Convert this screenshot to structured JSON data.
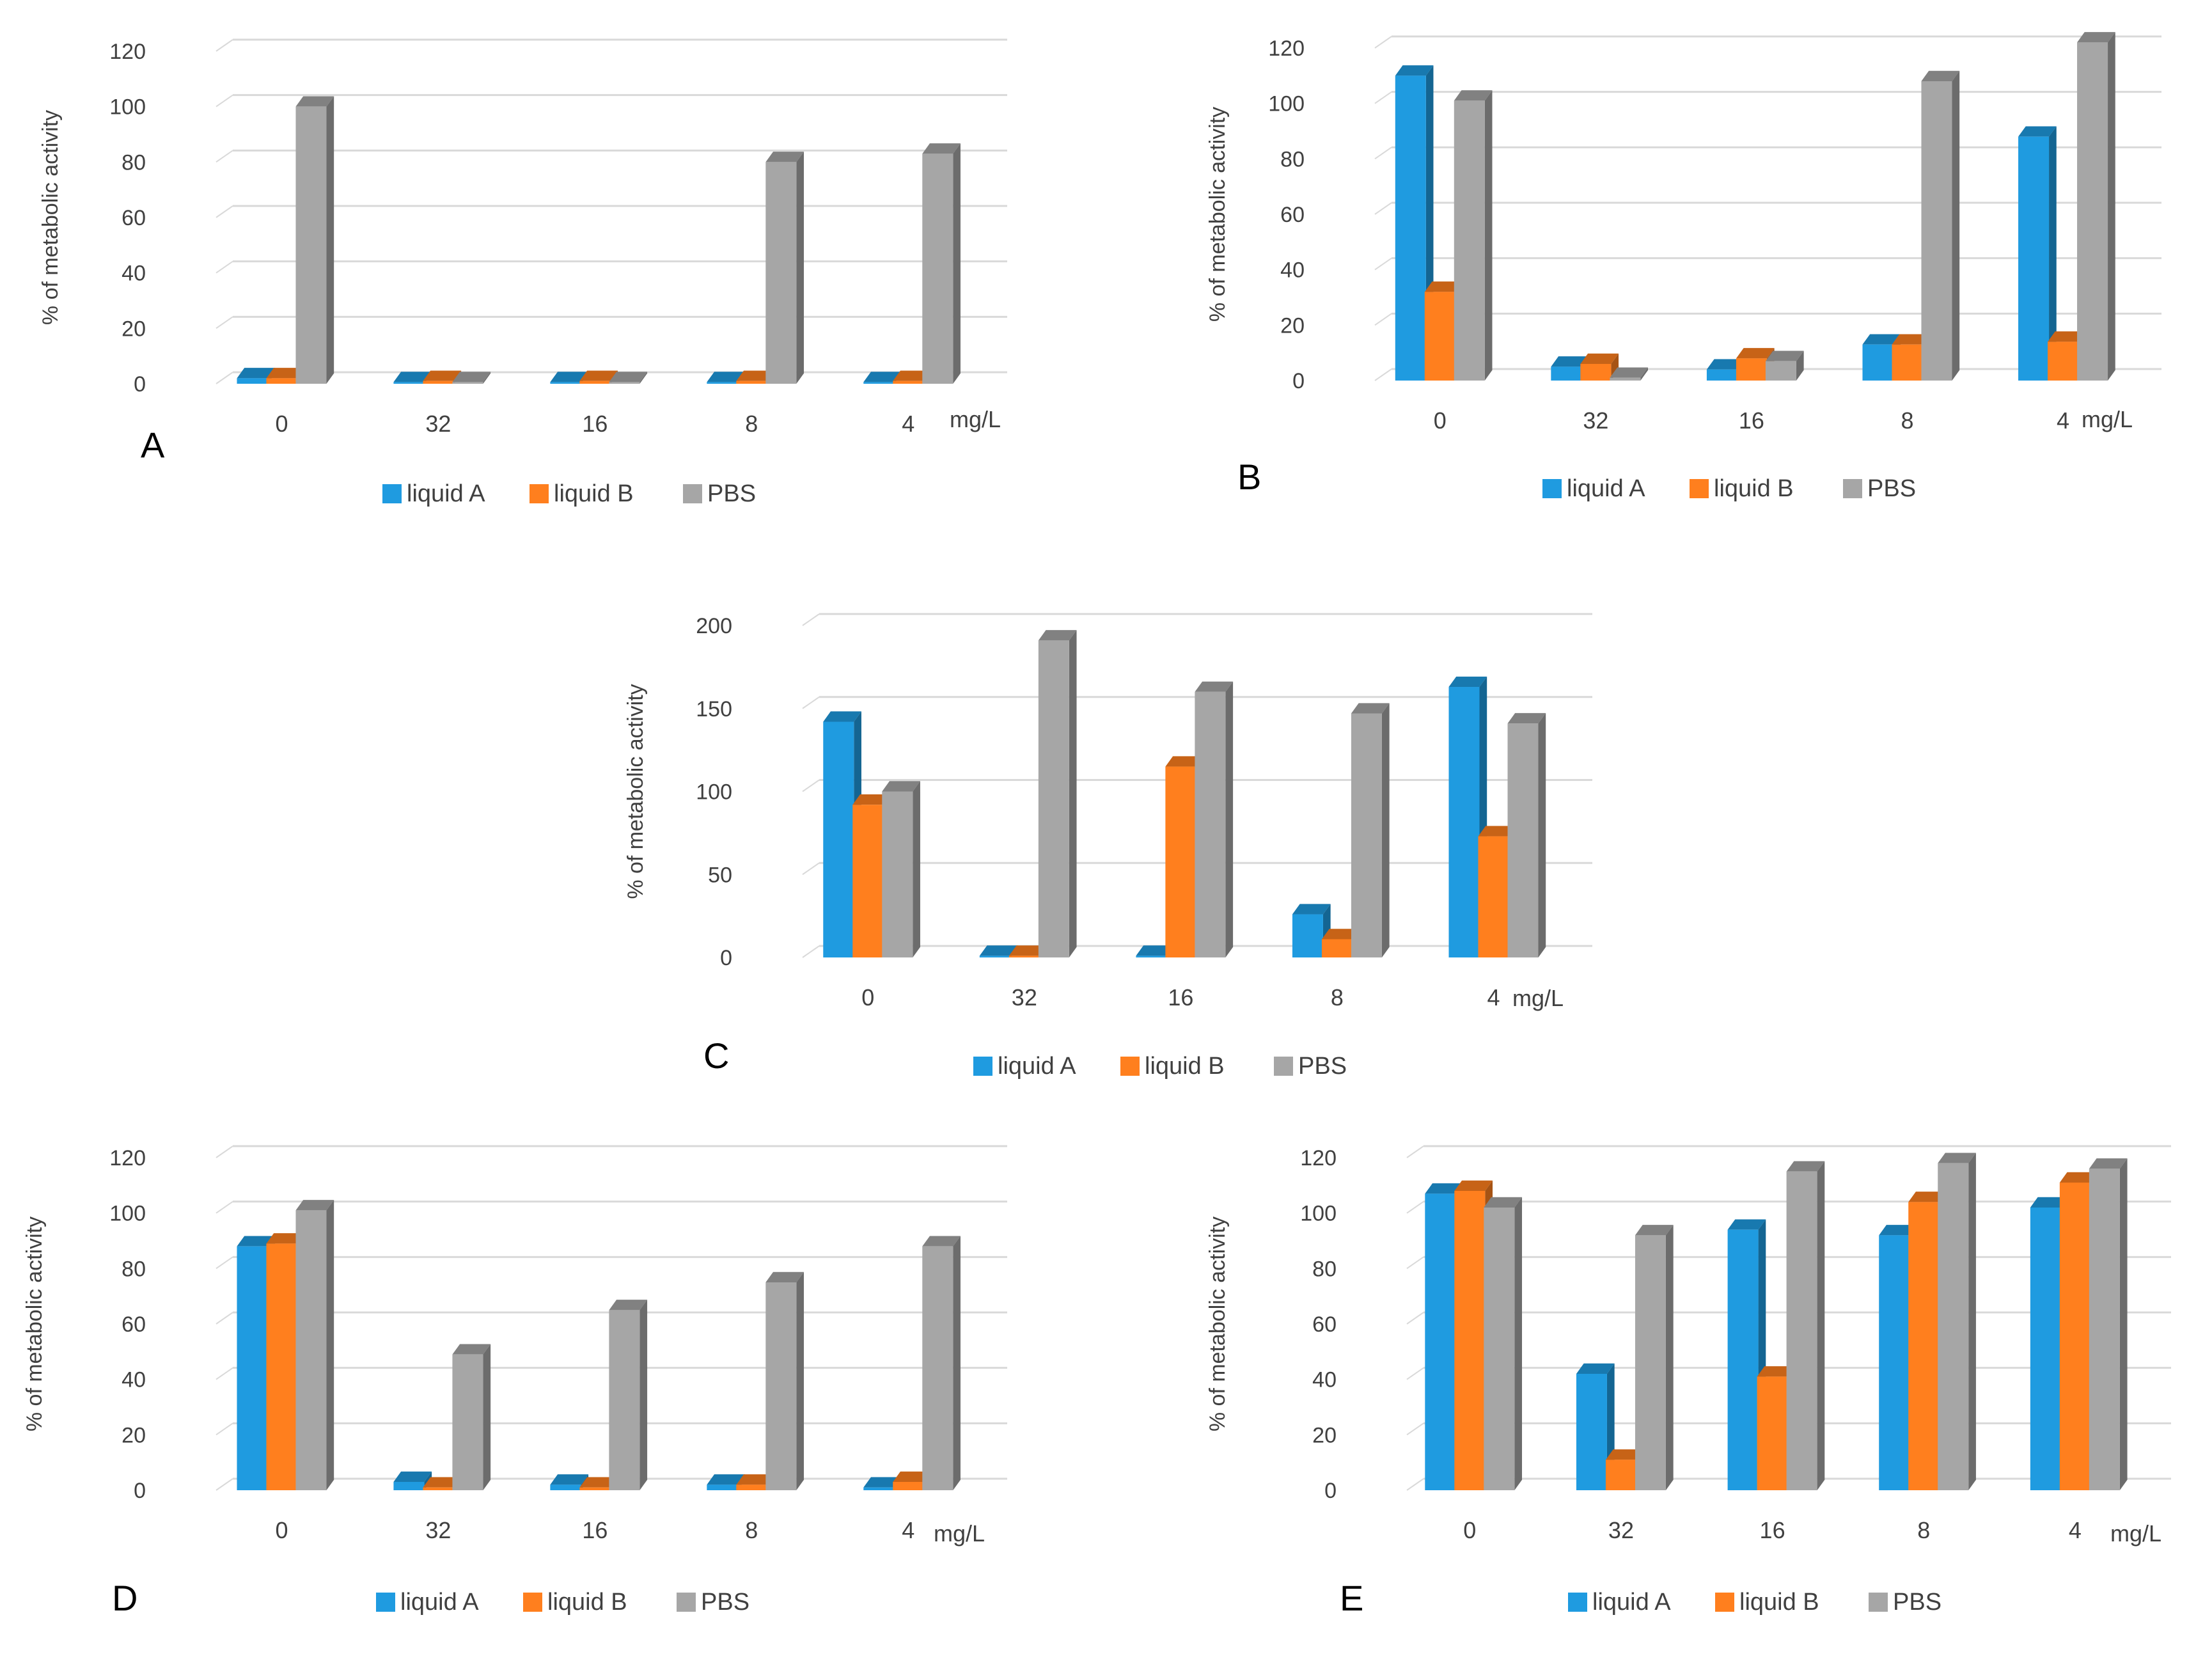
{
  "figure": {
    "legend": [
      "liquid A",
      "liquid B",
      "PBS"
    ],
    "colors": {
      "liquid A": "#1F9BE0",
      "liquid B": "#FF7F1E",
      "PBS": "#A6A6A6"
    }
  },
  "chart_data": [
    {
      "panel": "A",
      "type": "bar",
      "ylabel": "% of metabolic activity",
      "xunit": "mg/L",
      "categories": [
        "0",
        "32",
        "16",
        "8",
        "4"
      ],
      "yticks": [
        "0",
        "20",
        "40",
        "60",
        "80",
        "100",
        "120"
      ],
      "ylim": [
        0,
        120
      ],
      "series": [
        {
          "name": "liquid A",
          "values": [
            2,
            0,
            0,
            0,
            0
          ]
        },
        {
          "name": "liquid B",
          "values": [
            2,
            1,
            1,
            1,
            1
          ]
        },
        {
          "name": "PBS",
          "values": [
            100,
            0,
            0,
            80,
            83
          ]
        }
      ]
    },
    {
      "panel": "B",
      "type": "bar",
      "ylabel": "% of metabolic activity",
      "xunit": "mg/L",
      "categories": [
        "0",
        "32",
        "16",
        "8",
        "4"
      ],
      "yticks": [
        "0",
        "20",
        "40",
        "60",
        "80",
        "100",
        "120"
      ],
      "ylim": [
        0,
        120
      ],
      "series": [
        {
          "name": "liquid A",
          "values": [
            110,
            5,
            4,
            13,
            88
          ]
        },
        {
          "name": "liquid B",
          "values": [
            32,
            6,
            8,
            13,
            14
          ]
        },
        {
          "name": "PBS",
          "values": [
            101,
            1,
            7,
            108,
            122
          ]
        }
      ]
    },
    {
      "panel": "C",
      "type": "bar",
      "ylabel": "% of metabolic activity",
      "xunit": "mg/L",
      "categories": [
        "0",
        "32",
        "16",
        "8",
        "4"
      ],
      "yticks": [
        "0",
        "50",
        "100",
        "150",
        "200"
      ],
      "ylim": [
        0,
        200
      ],
      "series": [
        {
          "name": "liquid A",
          "values": [
            142,
            1,
            1,
            26,
            163
          ]
        },
        {
          "name": "liquid B",
          "values": [
            92,
            1,
            115,
            11,
            73
          ]
        },
        {
          "name": "PBS",
          "values": [
            100,
            191,
            160,
            147,
            141
          ]
        }
      ]
    },
    {
      "panel": "D",
      "type": "bar",
      "ylabel": "% of metabolic activity",
      "xunit": "mg/L",
      "categories": [
        "0",
        "32",
        "16",
        "8",
        "4"
      ],
      "yticks": [
        "0",
        "20",
        "40",
        "60",
        "80",
        "100",
        "120"
      ],
      "ylim": [
        0,
        120
      ],
      "series": [
        {
          "name": "liquid A",
          "values": [
            88,
            3,
            2,
            2,
            1
          ]
        },
        {
          "name": "liquid B",
          "values": [
            89,
            1,
            1,
            2,
            3
          ]
        },
        {
          "name": "PBS",
          "values": [
            101,
            49,
            65,
            75,
            88
          ]
        }
      ]
    },
    {
      "panel": "E",
      "type": "bar",
      "ylabel": "% of metabolic activity",
      "xunit": "mg/L",
      "categories": [
        "0",
        "32",
        "16",
        "8",
        "4"
      ],
      "yticks": [
        "0",
        "20",
        "40",
        "60",
        "80",
        "100",
        "120"
      ],
      "ylim": [
        0,
        120
      ],
      "series": [
        {
          "name": "liquid A",
          "values": [
            107,
            42,
            94,
            92,
            102
          ]
        },
        {
          "name": "liquid B",
          "values": [
            108,
            11,
            41,
            104,
            111
          ]
        },
        {
          "name": "PBS",
          "values": [
            102,
            92,
            115,
            118,
            116
          ]
        }
      ]
    }
  ]
}
